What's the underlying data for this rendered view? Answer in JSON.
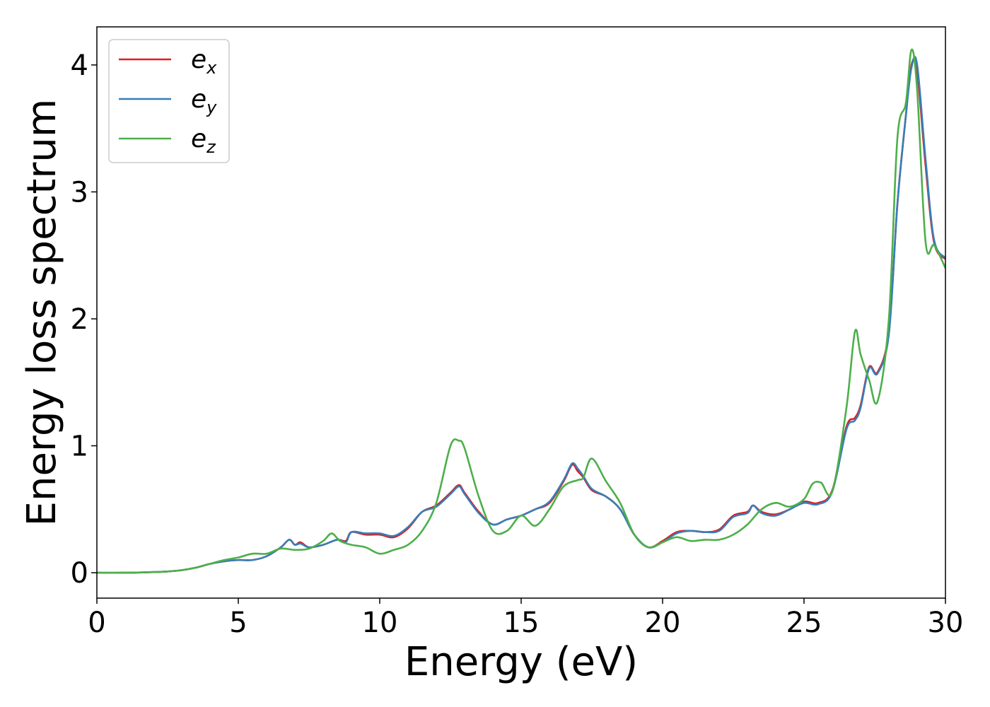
{
  "chart_data": {
    "type": "line",
    "title": "",
    "xlabel": "Energy (eV)",
    "ylabel": "Energy loss spectrum",
    "xlim": [
      0,
      30
    ],
    "ylim": [
      -0.2,
      4.3
    ],
    "xticks": [
      0,
      5,
      10,
      15,
      20,
      25,
      30
    ],
    "yticks": [
      0,
      1,
      2,
      3,
      4
    ],
    "grid": false,
    "legend_position": "top-left",
    "series": [
      {
        "name": "e",
        "subscript": "x",
        "color": "#e41a1c",
        "x": [
          0,
          1,
          2,
          2.5,
          3,
          3.5,
          4,
          4.5,
          5,
          5.5,
          6,
          6.5,
          6.8,
          7,
          7.2,
          7.5,
          8,
          8.5,
          8.8,
          9,
          9.5,
          10,
          10.5,
          11,
          11.5,
          12,
          12.5,
          12.8,
          13,
          13.5,
          14,
          14.5,
          15,
          15.5,
          16,
          16.5,
          16.8,
          17,
          17.2,
          17.5,
          18,
          18.5,
          19,
          19.5,
          20,
          20.5,
          21,
          21.5,
          22,
          22.5,
          23,
          23.2,
          23.5,
          24,
          24.5,
          25,
          25.5,
          26,
          26.5,
          26.8,
          27,
          27.3,
          27.6,
          28,
          28.3,
          28.6,
          28.8,
          29,
          29.3,
          29.6,
          30
        ],
        "y": [
          0,
          0,
          0.005,
          0.01,
          0.02,
          0.04,
          0.07,
          0.09,
          0.1,
          0.1,
          0.13,
          0.2,
          0.26,
          0.22,
          0.24,
          0.2,
          0.22,
          0.26,
          0.25,
          0.32,
          0.3,
          0.3,
          0.28,
          0.35,
          0.48,
          0.53,
          0.63,
          0.69,
          0.63,
          0.48,
          0.38,
          0.42,
          0.45,
          0.5,
          0.55,
          0.72,
          0.85,
          0.8,
          0.75,
          0.65,
          0.6,
          0.5,
          0.3,
          0.2,
          0.25,
          0.32,
          0.33,
          0.32,
          0.34,
          0.45,
          0.48,
          0.53,
          0.48,
          0.46,
          0.5,
          0.56,
          0.55,
          0.65,
          1.15,
          1.22,
          1.32,
          1.62,
          1.58,
          1.9,
          2.9,
          3.6,
          4,
          3.95,
          3.2,
          2.6,
          2.47
        ]
      },
      {
        "name": "e",
        "subscript": "y",
        "color": "#377eb8",
        "x": [
          0,
          1,
          2,
          2.5,
          3,
          3.5,
          4,
          4.5,
          5,
          5.5,
          6,
          6.5,
          6.8,
          7,
          7.2,
          7.5,
          8,
          8.5,
          8.8,
          9,
          9.5,
          10,
          10.5,
          11,
          11.5,
          12,
          12.5,
          12.8,
          13,
          13.5,
          14,
          14.5,
          15,
          15.5,
          16,
          16.5,
          16.8,
          17,
          17.2,
          17.5,
          18,
          18.5,
          19,
          19.5,
          20,
          20.5,
          21,
          21.5,
          22,
          22.5,
          23,
          23.2,
          23.5,
          24,
          24.5,
          25,
          25.5,
          26,
          26.5,
          26.8,
          27,
          27.3,
          27.6,
          28,
          28.3,
          28.6,
          28.8,
          29,
          29.3,
          29.6,
          30
        ],
        "y": [
          0,
          0,
          0.005,
          0.01,
          0.02,
          0.04,
          0.07,
          0.09,
          0.1,
          0.1,
          0.13,
          0.2,
          0.26,
          0.22,
          0.23,
          0.2,
          0.22,
          0.26,
          0.24,
          0.32,
          0.31,
          0.31,
          0.29,
          0.36,
          0.48,
          0.52,
          0.62,
          0.68,
          0.62,
          0.47,
          0.38,
          0.42,
          0.45,
          0.5,
          0.56,
          0.73,
          0.86,
          0.82,
          0.76,
          0.66,
          0.6,
          0.5,
          0.3,
          0.2,
          0.24,
          0.31,
          0.33,
          0.32,
          0.33,
          0.44,
          0.47,
          0.53,
          0.47,
          0.45,
          0.5,
          0.55,
          0.54,
          0.64,
          1.13,
          1.2,
          1.3,
          1.61,
          1.57,
          1.88,
          2.9,
          3.6,
          3.98,
          4,
          3.25,
          2.62,
          2.48
        ]
      },
      {
        "name": "e",
        "subscript": "z",
        "color": "#4daf4a",
        "x": [
          0,
          1,
          2,
          2.5,
          3,
          3.5,
          4,
          4.5,
          5,
          5.5,
          6,
          6.5,
          7,
          7.5,
          8,
          8.3,
          8.6,
          9,
          9.5,
          10,
          10.5,
          11,
          11.5,
          12,
          12.5,
          12.8,
          13,
          13.5,
          14,
          14.5,
          15,
          15.5,
          16,
          16.5,
          17,
          17.2,
          17.5,
          18,
          18.5,
          19,
          19.5,
          20,
          20.5,
          21,
          21.5,
          22,
          22.5,
          23,
          23.5,
          24,
          24.5,
          25,
          25.3,
          25.6,
          26,
          26.5,
          26.8,
          27,
          27.3,
          27.6,
          28,
          28.3,
          28.6,
          28.8,
          29,
          29.3,
          29.6,
          30
        ],
        "y": [
          0,
          0,
          0.005,
          0.01,
          0.02,
          0.04,
          0.07,
          0.1,
          0.12,
          0.15,
          0.15,
          0.19,
          0.18,
          0.19,
          0.25,
          0.31,
          0.25,
          0.22,
          0.2,
          0.15,
          0.18,
          0.22,
          0.33,
          0.55,
          1,
          1.04,
          0.98,
          0.6,
          0.33,
          0.33,
          0.45,
          0.37,
          0.5,
          0.68,
          0.73,
          0.75,
          0.9,
          0.72,
          0.55,
          0.3,
          0.2,
          0.24,
          0.28,
          0.25,
          0.26,
          0.26,
          0.3,
          0.38,
          0.5,
          0.55,
          0.52,
          0.58,
          0.7,
          0.71,
          0.64,
          1.3,
          1.9,
          1.72,
          1.52,
          1.35,
          2.0,
          3.42,
          3.7,
          4.12,
          3.8,
          2.6,
          2.58,
          2.4
        ]
      }
    ]
  }
}
